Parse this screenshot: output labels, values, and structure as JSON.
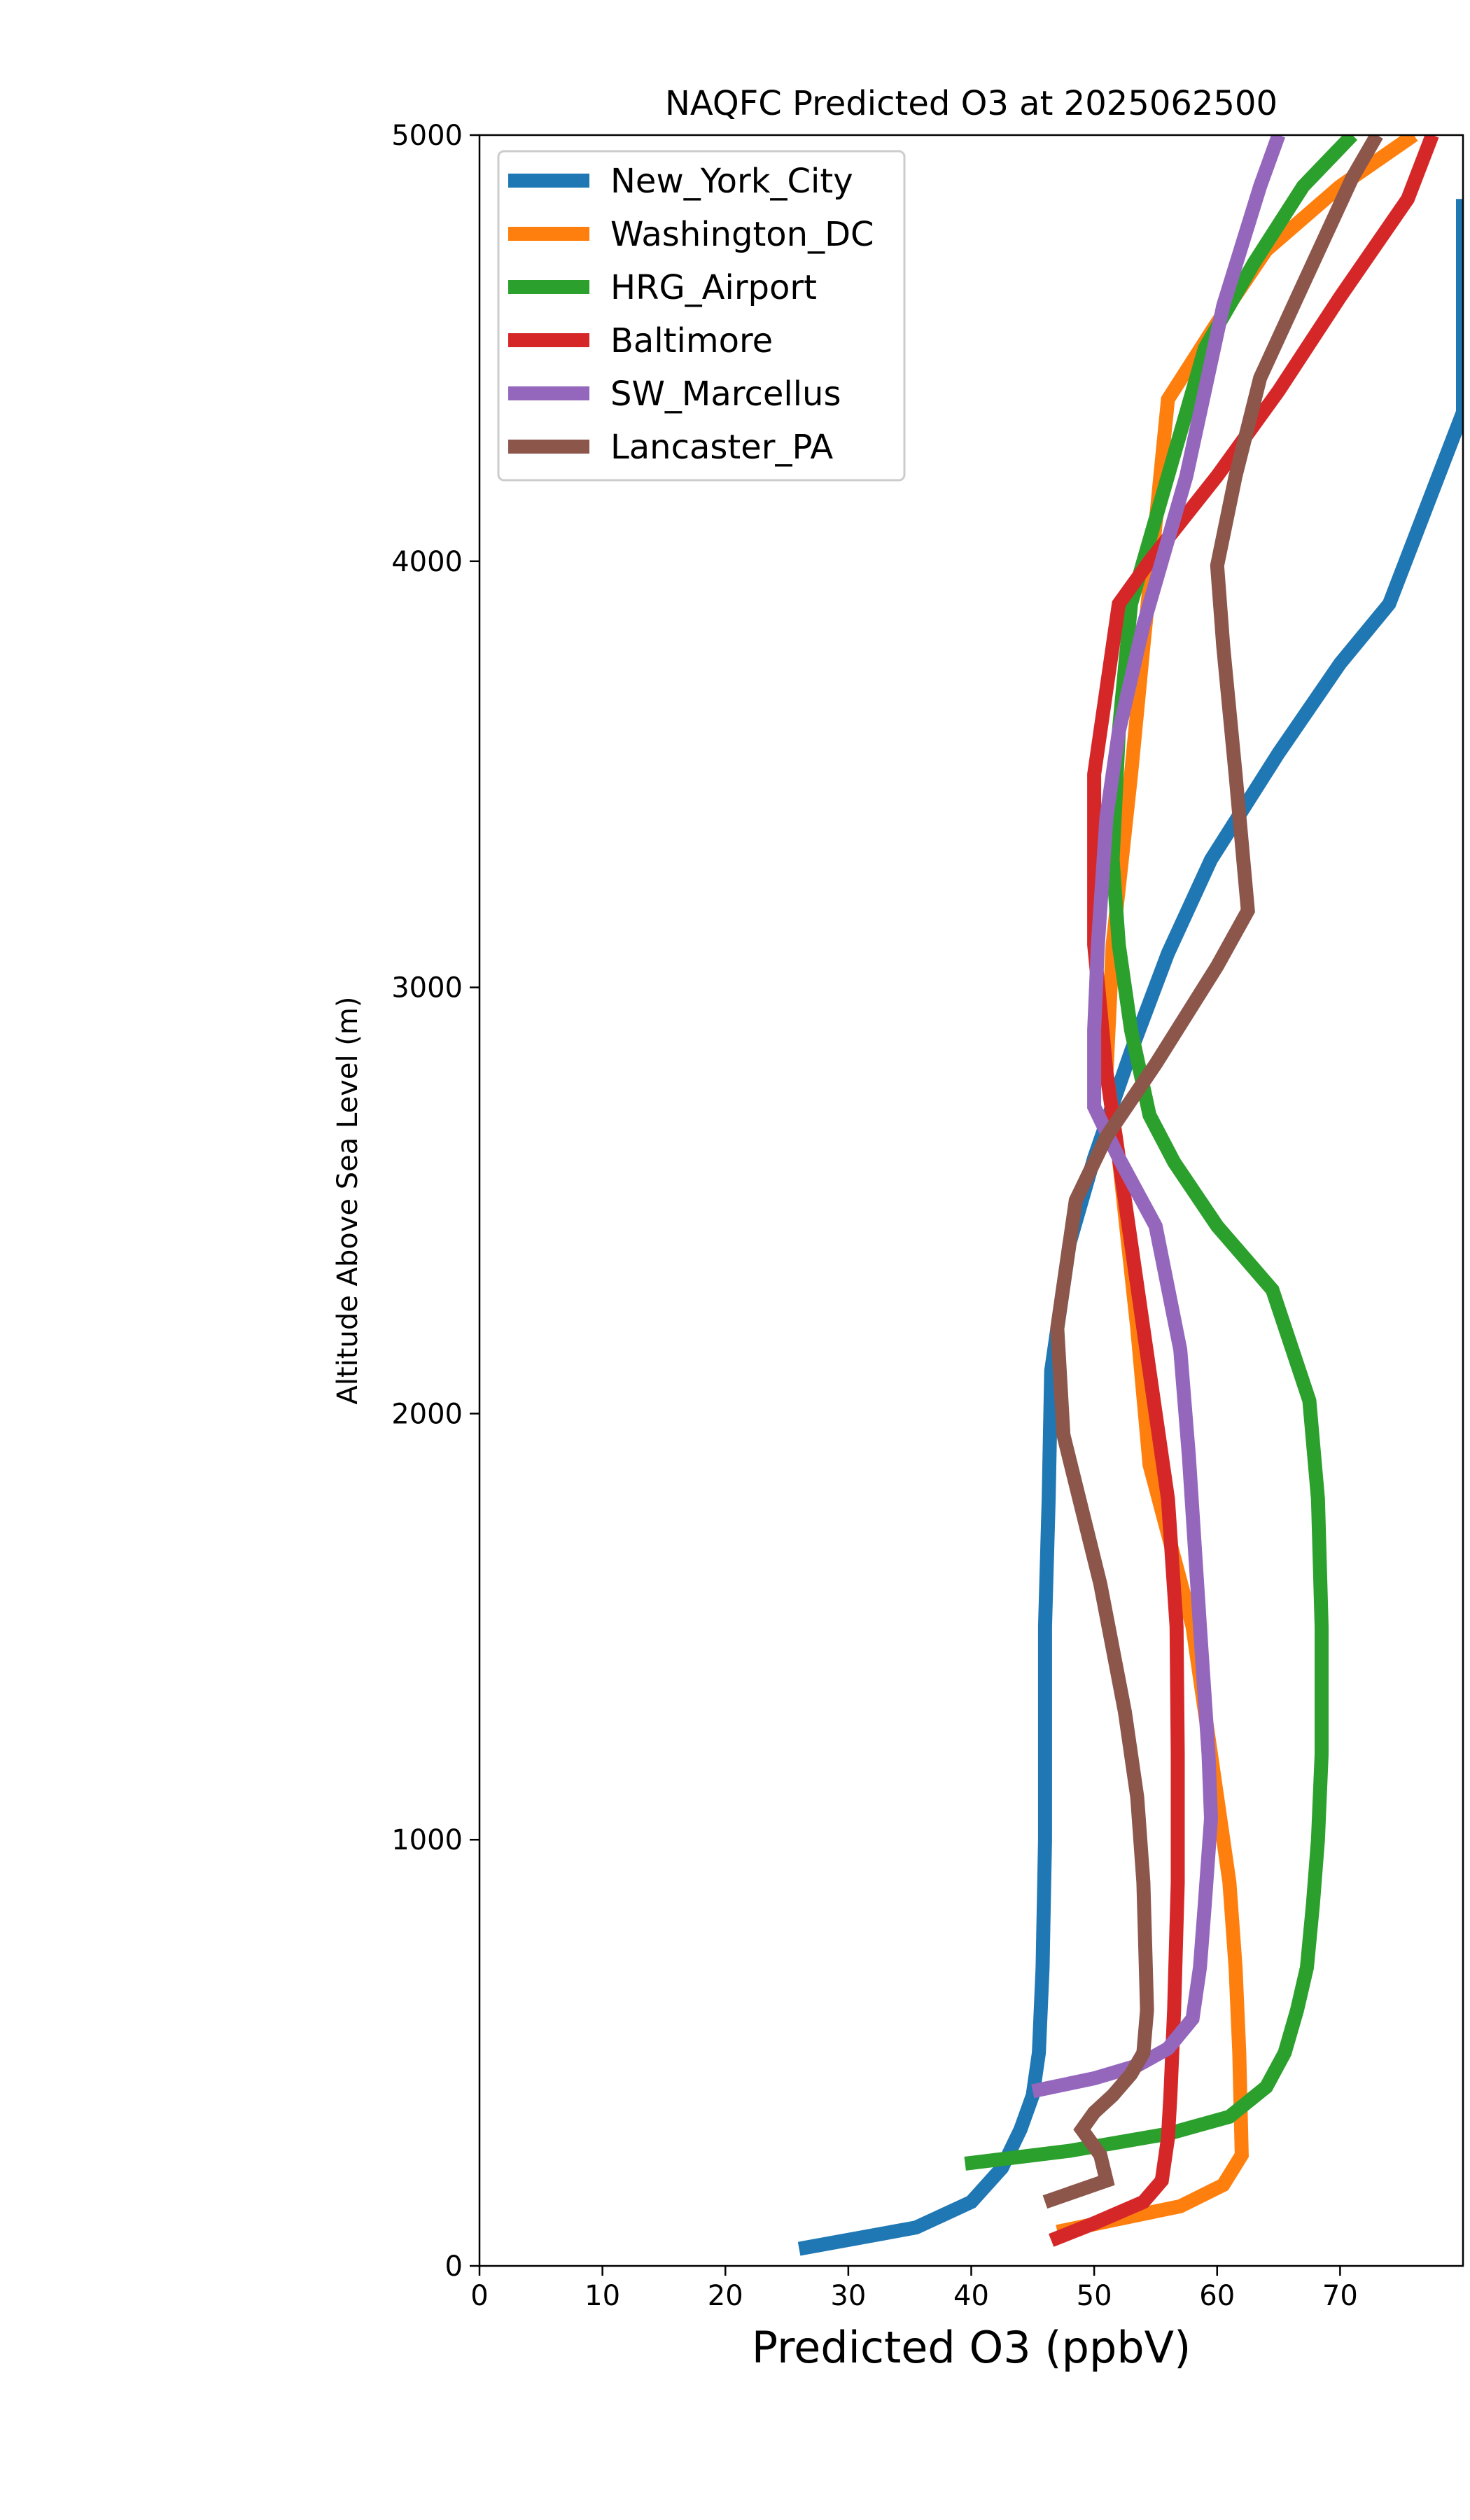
{
  "chart_data": {
    "type": "line",
    "title": "NAQFC Predicted O3 at 2025062500",
    "xlabel": "Predicted O3 (ppbV)",
    "ylabel": "Altitude Above Sea Level (m)",
    "xlim": [
      0,
      80
    ],
    "ylim": [
      0,
      5000
    ],
    "xticks": [
      0,
      10,
      20,
      30,
      40,
      50,
      60,
      70
    ],
    "yticks": [
      0,
      1000,
      2000,
      3000,
      4000,
      5000
    ],
    "grid": false,
    "legend_position": "top-left",
    "series": [
      {
        "name": "New_York_City",
        "color": "#1f77b4",
        "points": [
          [
            26,
            40
          ],
          [
            35.5,
            90
          ],
          [
            40,
            150
          ],
          [
            42.5,
            230
          ],
          [
            44,
            320
          ],
          [
            45,
            400
          ],
          [
            45.5,
            500
          ],
          [
            45.8,
            700
          ],
          [
            46,
            1000
          ],
          [
            46,
            1500
          ],
          [
            46.3,
            1800
          ],
          [
            46.5,
            2100
          ],
          [
            48,
            2400
          ],
          [
            50,
            2600
          ],
          [
            53,
            2850
          ],
          [
            56,
            3080
          ],
          [
            59.5,
            3300
          ],
          [
            65,
            3550
          ],
          [
            70,
            3760
          ],
          [
            74,
            3900
          ],
          [
            80,
            4350
          ],
          [
            80,
            4800
          ],
          [
            80,
            4850
          ]
        ]
      },
      {
        "name": "Washington_DC",
        "color": "#ff7f0e",
        "points": [
          [
            47,
            80
          ],
          [
            57,
            140
          ],
          [
            60.5,
            190
          ],
          [
            62,
            260
          ],
          [
            61.8,
            500
          ],
          [
            61.5,
            700
          ],
          [
            61,
            900
          ],
          [
            60,
            1100
          ],
          [
            58,
            1500
          ],
          [
            54.5,
            1880
          ],
          [
            53.5,
            2200
          ],
          [
            52,
            2600
          ],
          [
            51,
            2800
          ],
          [
            51.5,
            3100
          ],
          [
            53,
            3500
          ],
          [
            54,
            3800
          ],
          [
            56,
            4380
          ],
          [
            60,
            4560
          ],
          [
            64,
            4730
          ],
          [
            70,
            4880
          ],
          [
            76,
            5000
          ]
        ]
      },
      {
        "name": "HRG_Airport",
        "color": "#2ca02c",
        "points": [
          [
            39.5,
            240
          ],
          [
            48,
            270
          ],
          [
            56,
            310
          ],
          [
            61,
            350
          ],
          [
            64,
            420
          ],
          [
            65.5,
            500
          ],
          [
            66.5,
            600
          ],
          [
            67.3,
            700
          ],
          [
            67.8,
            850
          ],
          [
            68.2,
            1000
          ],
          [
            68.5,
            1200
          ],
          [
            68.5,
            1500
          ],
          [
            68.2,
            1800
          ],
          [
            67.5,
            2030
          ],
          [
            64.5,
            2290
          ],
          [
            60,
            2440
          ],
          [
            56.5,
            2590
          ],
          [
            54.5,
            2700
          ],
          [
            53,
            2900
          ],
          [
            52,
            3100
          ],
          [
            51.5,
            3300
          ],
          [
            52,
            3600
          ],
          [
            53,
            3900
          ],
          [
            56,
            4200
          ],
          [
            59,
            4500
          ],
          [
            63,
            4700
          ],
          [
            67,
            4880
          ],
          [
            71,
            5000
          ]
        ]
      },
      {
        "name": "Baltimore",
        "color": "#d62728",
        "points": [
          [
            46.5,
            60
          ],
          [
            50,
            100
          ],
          [
            54,
            150
          ],
          [
            55.5,
            200
          ],
          [
            56,
            300
          ],
          [
            56.2,
            400
          ],
          [
            56.5,
            600
          ],
          [
            56.8,
            900
          ],
          [
            56.8,
            1200
          ],
          [
            56.7,
            1500
          ],
          [
            56,
            1800
          ],
          [
            55,
            2000
          ],
          [
            53.5,
            2300
          ],
          [
            52,
            2600
          ],
          [
            51,
            2800
          ],
          [
            50,
            3100
          ],
          [
            50,
            3500
          ],
          [
            51,
            3700
          ],
          [
            52,
            3900
          ],
          [
            54.5,
            4000
          ],
          [
            60,
            4200
          ],
          [
            65,
            4400
          ],
          [
            70,
            4620
          ],
          [
            75.5,
            4850
          ],
          [
            77.5,
            5000
          ]
        ]
      },
      {
        "name": "SW_Marcellus",
        "color": "#9467bd",
        "points": [
          [
            45,
            410
          ],
          [
            50,
            440
          ],
          [
            53.5,
            470
          ],
          [
            56,
            510
          ],
          [
            58,
            580
          ],
          [
            58.6,
            700
          ],
          [
            59,
            850
          ],
          [
            59.5,
            1050
          ],
          [
            59.3,
            1200
          ],
          [
            58.6,
            1500
          ],
          [
            57.7,
            1900
          ],
          [
            57,
            2150
          ],
          [
            55,
            2440
          ],
          [
            52,
            2600
          ],
          [
            50,
            2720
          ],
          [
            50,
            2900
          ],
          [
            50.3,
            3100
          ],
          [
            51,
            3400
          ],
          [
            52,
            3600
          ],
          [
            54,
            3850
          ],
          [
            57.5,
            4200
          ],
          [
            60.5,
            4600
          ],
          [
            63.5,
            4880
          ],
          [
            65,
            5000
          ]
        ]
      },
      {
        "name": "Lancaster_PA",
        "color": "#8c564b",
        "points": [
          [
            46,
            150
          ],
          [
            51,
            200
          ],
          [
            50.5,
            260
          ],
          [
            49,
            320
          ],
          [
            50,
            360
          ],
          [
            51.5,
            400
          ],
          [
            53,
            450
          ],
          [
            54,
            500
          ],
          [
            54.3,
            600
          ],
          [
            54.2,
            700
          ],
          [
            54,
            900
          ],
          [
            53.5,
            1100
          ],
          [
            52.5,
            1300
          ],
          [
            50.5,
            1600
          ],
          [
            47.5,
            1950
          ],
          [
            47,
            2200
          ],
          [
            48.5,
            2500
          ],
          [
            51,
            2650
          ],
          [
            55,
            2820
          ],
          [
            60,
            3050
          ],
          [
            62.5,
            3180
          ],
          [
            61.5,
            3500
          ],
          [
            60.5,
            3800
          ],
          [
            60,
            3990
          ],
          [
            61.5,
            4200
          ],
          [
            63.5,
            4430
          ],
          [
            67,
            4650
          ],
          [
            71,
            4900
          ],
          [
            73,
            5000
          ]
        ]
      }
    ]
  }
}
